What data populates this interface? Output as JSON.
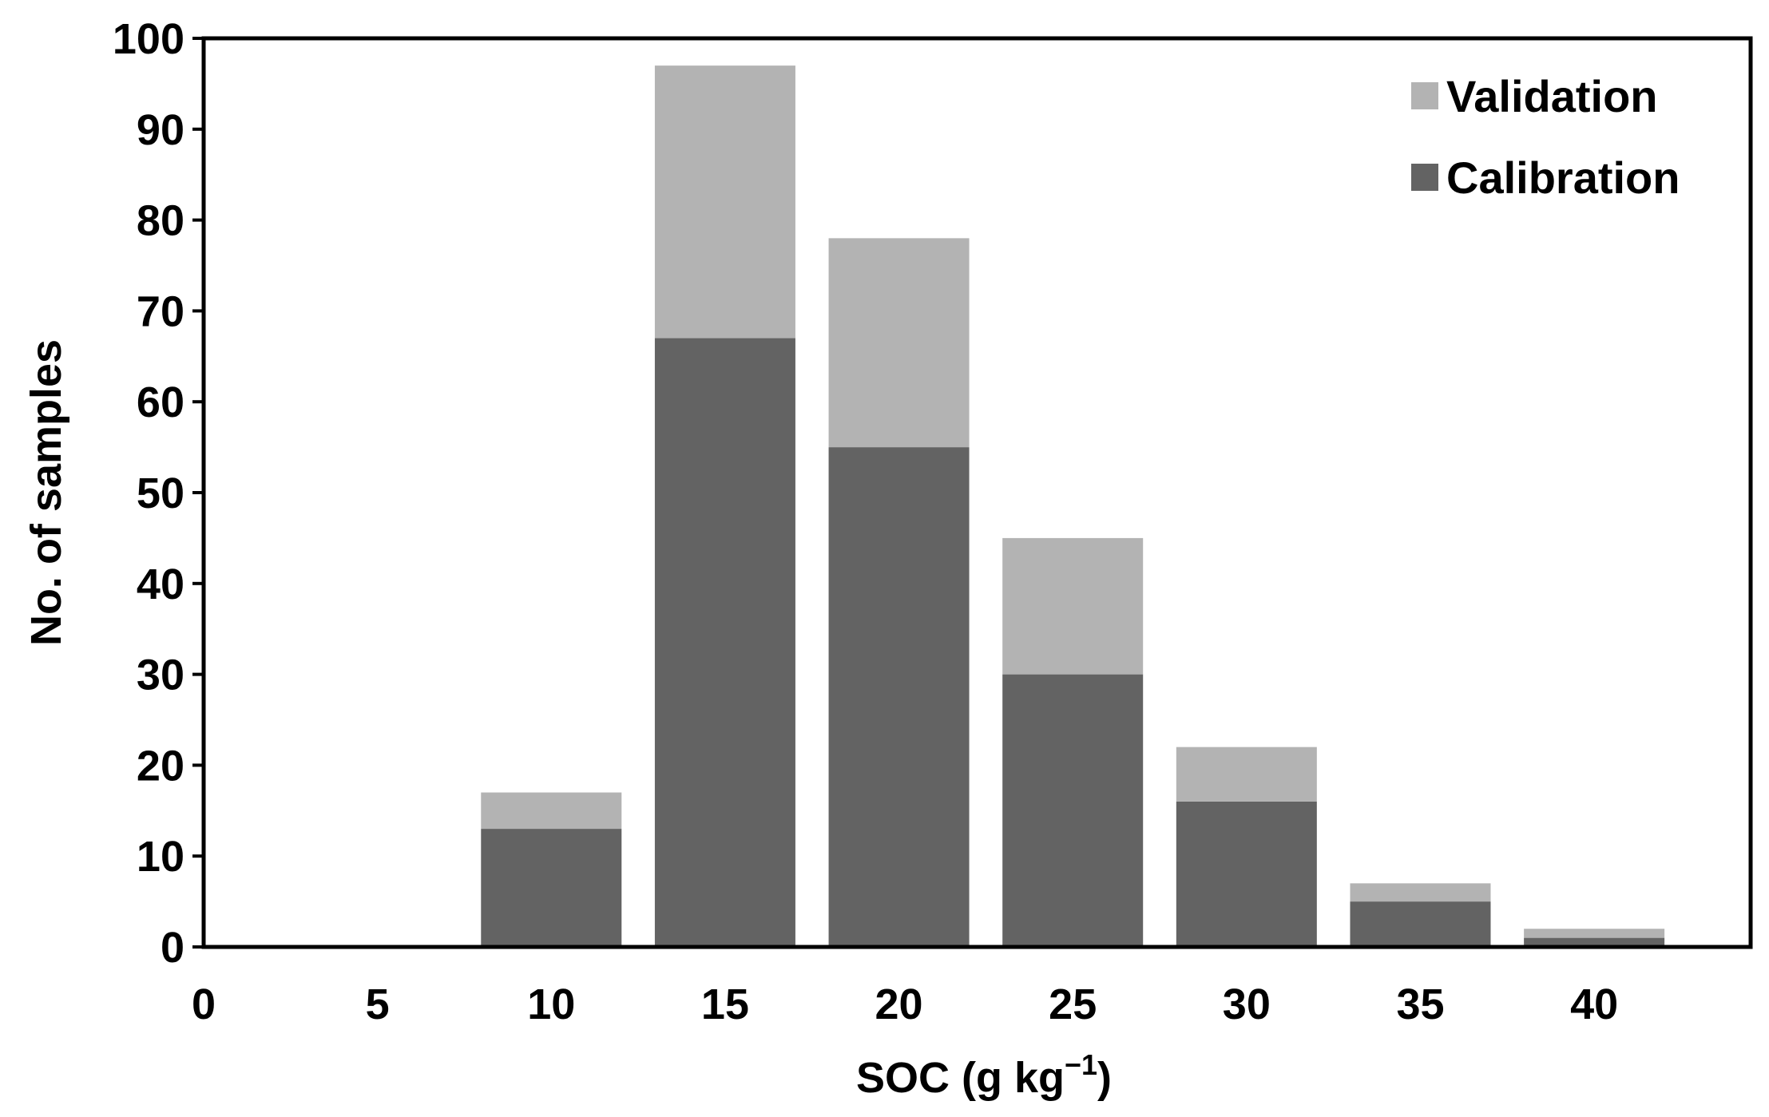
{
  "chart_data": {
    "type": "bar",
    "stacked": true,
    "x_ticks": [
      0,
      5,
      10,
      15,
      20,
      25,
      30,
      35,
      40
    ],
    "x_range": [
      0,
      44.5
    ],
    "categories": [
      10,
      15,
      20,
      25,
      30,
      35,
      40
    ],
    "series": [
      {
        "name": "Calibration",
        "values": [
          13,
          67,
          55,
          30,
          16,
          5,
          1
        ],
        "color": "#636363"
      },
      {
        "name": "Validation",
        "values": [
          4,
          30,
          23,
          15,
          6,
          2,
          1
        ],
        "color": "#b3b3b3"
      }
    ],
    "ylim": [
      0,
      100
    ],
    "y_ticks": [
      0,
      10,
      20,
      30,
      40,
      50,
      60,
      70,
      80,
      90,
      100
    ],
    "xlabel": "SOC (g kg",
    "xlabel_superscript": "−1",
    "xlabel_suffix": ")",
    "ylabel": "No. of samples",
    "legend": [
      "Validation",
      "Calibration"
    ],
    "legend_position": "top-right",
    "grid": false
  }
}
